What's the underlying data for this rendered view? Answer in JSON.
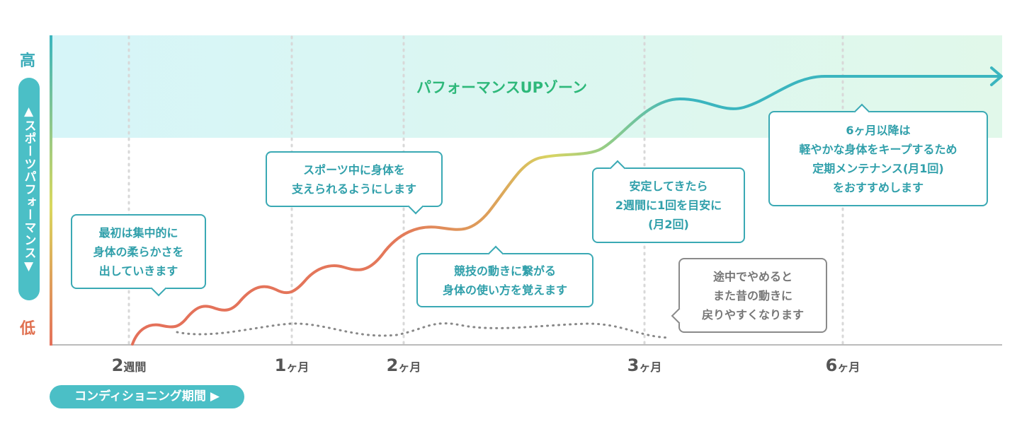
{
  "y_axis": {
    "high_label": "高",
    "low_label": "低",
    "title": "▲スポーツパフォーマンス▼"
  },
  "zone_label": "パフォーマンスUPゾーン",
  "x_axis": {
    "ticks": [
      {
        "num": "2",
        "unit": "週間"
      },
      {
        "num": "1",
        "unit": "ヶ月"
      },
      {
        "num": "2",
        "unit": "ヶ月"
      },
      {
        "num": "3",
        "unit": "ヶ月"
      },
      {
        "num": "6",
        "unit": "ヶ月"
      }
    ],
    "title": "コンディショニング期間 ▶"
  },
  "callouts": [
    {
      "lines": [
        "最初は集中的に",
        "身体の柔らかさを",
        "出していきます"
      ]
    },
    {
      "lines": [
        "スポーツ中に身体を",
        "支えられるようにします"
      ]
    },
    {
      "lines": [
        "競技の動きに繋がる",
        "身体の使い方を覚えます"
      ]
    },
    {
      "lines": [
        "安定してきたら",
        "2週間に1回を目安に",
        "(月2回)"
      ]
    },
    {
      "lines": [
        "6ヶ月以降は",
        "軽やかな身体をキープするため",
        "定期メンテナンス(月1回)",
        "をおすすめします"
      ]
    },
    {
      "lines": [
        "途中でやめると",
        "また昔の動きに",
        "戻りやすくなります"
      ]
    }
  ],
  "colors": {
    "teal": "#3bb5bf",
    "orange": "#e4705a",
    "zone_text": "#2eb87a",
    "dropout_line": "#888888"
  }
}
